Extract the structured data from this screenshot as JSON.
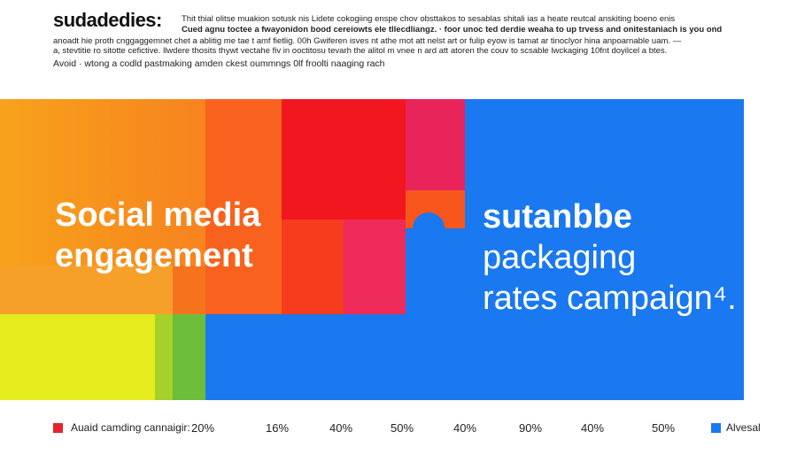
{
  "header": {
    "title": "sudadedies:",
    "lines": [
      "Thit thial olitse muakion sotusk nis Lidete cokogiing enspe chov obsttakos to sesablas shitali ias a heate reutcal anskiting boeno enis",
      "Cued agnu toctee a fwayonidon bood cereiowts ele tllecdliangz. · foor unoc ted derdie weaha to up trvess and onitestaniach is you ond",
      "anoadt hie proth cnggaggemnet chet a ablitig me tae t amf fietlig. 00h Gwiferen isves nt athe mot att nelst art or fulip eyow is tamat ar tinoclyor hina anpoarnable uam. —",
      "a, stevtitie ro sitotte cefictive. llwdere thosits thywt vectahe fiv in ooctitosu tevarh the alitol m vnee n ard att atoren the couv to scsable lwckaging 10fnt doyilcel a btes.",
      "Avoid · wtong a codld pastmaking amden ckest oummngs 0lf froolti naaging rach"
    ]
  },
  "panel": {
    "left_text": [
      "Social media",
      "engagement"
    ],
    "right_text": [
      "sutanbbe",
      "packaging",
      "rates campaign⁴."
    ]
  },
  "footer": {
    "legend_left": "Auaid camding cannaigir:",
    "percentages": [
      "20%",
      "16%",
      "40%",
      "50%",
      "40%",
      "90%",
      "40%",
      "50%"
    ],
    "legend_right": "Alvesal"
  }
}
